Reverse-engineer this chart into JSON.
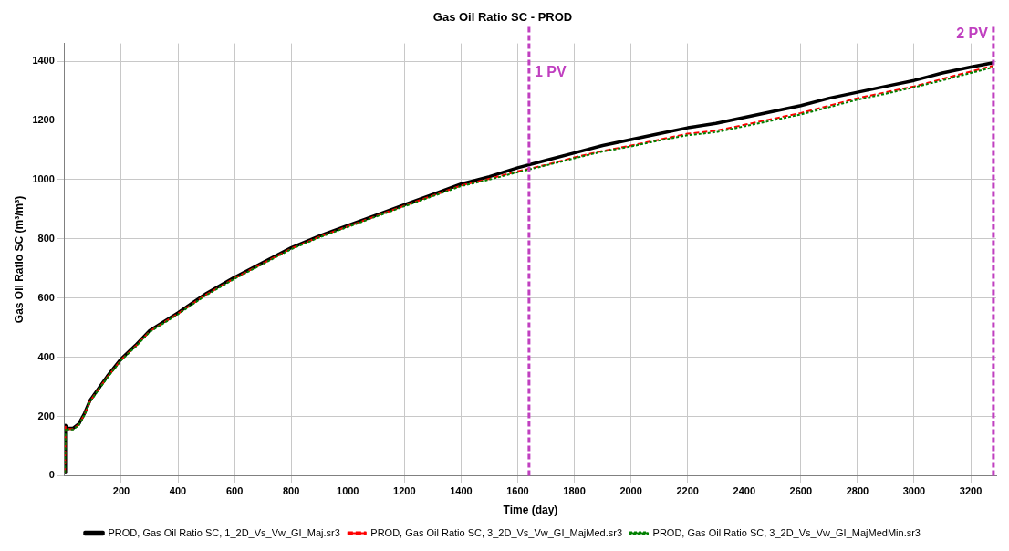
{
  "chart_data": {
    "type": "line",
    "title": "Gas Oil Ratio SC - PROD",
    "xlabel": "Time (day)",
    "ylabel": "Gas Oil Ratio SC (m³/m³)",
    "x": [
      1,
      3,
      10,
      30,
      50,
      70,
      90,
      120,
      150,
      200,
      250,
      300,
      400,
      500,
      600,
      700,
      800,
      900,
      1000,
      1100,
      1200,
      1300,
      1400,
      1500,
      1600,
      1700,
      1800,
      1900,
      2000,
      2100,
      2200,
      2300,
      2400,
      2500,
      2600,
      2700,
      2800,
      2900,
      3000,
      3100,
      3200,
      3280
    ],
    "series": [
      {
        "name": "PROD, Gas Oil Ratio SC, 1_2D_Vs_Vw_GI_Maj.sr3",
        "color": "#000000",
        "line_style": "solid",
        "values": [
          10,
          170,
          160,
          160,
          175,
          210,
          255,
          295,
          335,
          395,
          440,
          490,
          550,
          615,
          670,
          720,
          770,
          810,
          845,
          880,
          915,
          950,
          985,
          1010,
          1040,
          1065,
          1090,
          1115,
          1135,
          1155,
          1175,
          1190,
          1210,
          1230,
          1250,
          1275,
          1295,
          1315,
          1335,
          1360,
          1380,
          1395
        ]
      },
      {
        "name": "PROD, Gas Oil Ratio SC, 3_2D_Vs_Vw_GI_MajMed.sr3",
        "color": "#ff0000",
        "line_style": "dashed",
        "values": [
          10,
          165,
          158,
          158,
          172,
          207,
          252,
          292,
          332,
          392,
          437,
          487,
          547,
          612,
          667,
          717,
          767,
          807,
          842,
          877,
          912,
          946,
          980,
          1003,
          1028,
          1050,
          1075,
          1097,
          1115,
          1135,
          1155,
          1165,
          1185,
          1205,
          1225,
          1250,
          1275,
          1295,
          1315,
          1340,
          1365,
          1385
        ]
      },
      {
        "name": "PROD, Gas Oil Ratio SC, 3_2D_Vs_Vw_GI_MajMedMin.sr3",
        "color": "#008000",
        "line_style": "dotted",
        "values": [
          10,
          160,
          156,
          156,
          170,
          205,
          250,
          290,
          330,
          390,
          435,
          485,
          545,
          610,
          665,
          715,
          765,
          805,
          840,
          875,
          910,
          944,
          978,
          1000,
          1025,
          1048,
          1072,
          1095,
          1112,
          1132,
          1150,
          1160,
          1180,
          1200,
          1220,
          1245,
          1270,
          1290,
          1312,
          1335,
          1360,
          1380
        ]
      }
    ],
    "xlim": [
      0,
      3290
    ],
    "xticks": [
      200,
      400,
      600,
      800,
      1000,
      1200,
      1400,
      1600,
      1800,
      2000,
      2200,
      2400,
      2600,
      2800,
      3000,
      3200
    ],
    "ylim": [
      0,
      1460
    ],
    "yticks": [
      0,
      200,
      400,
      600,
      800,
      1000,
      1200,
      1400
    ],
    "ref_lines": [
      {
        "axis": "x",
        "value": 1640,
        "label": "1 PV",
        "color": "#c040c0",
        "line_style": "dashed"
      },
      {
        "axis": "x",
        "value": 3280,
        "label": "2 PV",
        "color": "#c040c0",
        "line_style": "dashed"
      }
    ],
    "grid": true,
    "legend": "bottom",
    "marker": "none"
  }
}
